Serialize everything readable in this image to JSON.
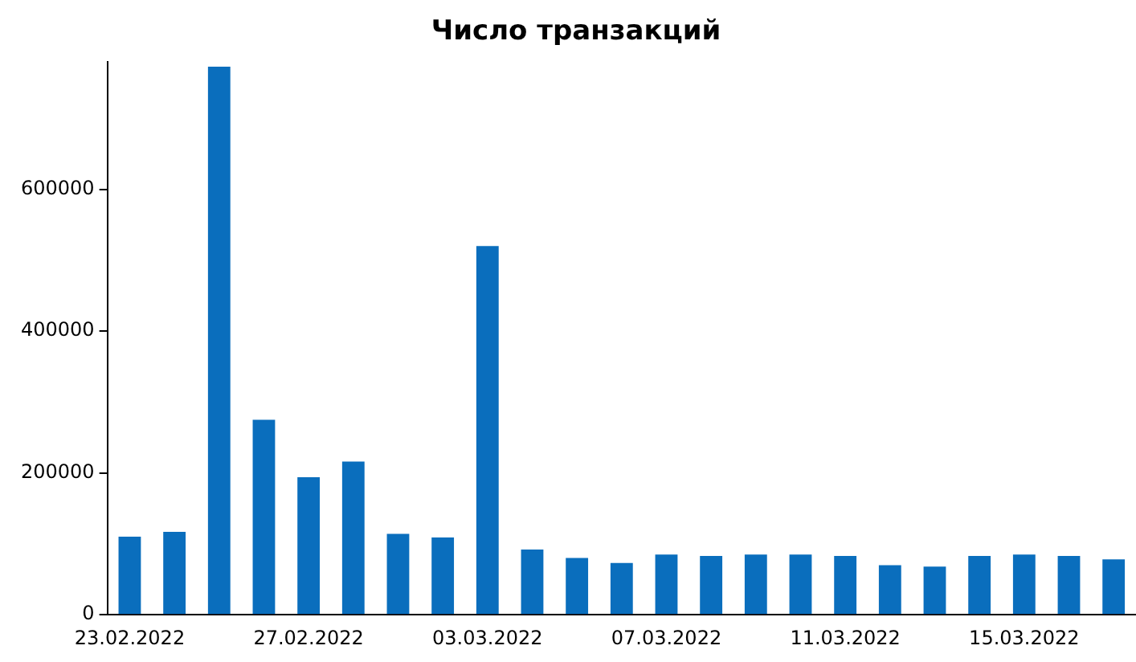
{
  "chart_data": {
    "type": "bar",
    "title": "Число транзакций",
    "categories": [
      "23.02.2022",
      null,
      null,
      null,
      "27.02.2022",
      null,
      null,
      null,
      "03.03.2022",
      null,
      null,
      null,
      "07.03.2022",
      null,
      null,
      null,
      "11.03.2022",
      null,
      null,
      null,
      "15.03.2022",
      null,
      null
    ],
    "values": [
      110000,
      117000,
      773000,
      275000,
      194000,
      216000,
      114000,
      109000,
      520000,
      92000,
      80000,
      73000,
      85000,
      83000,
      85000,
      85000,
      83000,
      70000,
      68000,
      83000,
      85000,
      83000,
      78000
    ],
    "color": "#0a6ebd",
    "ylim": [
      0,
      780000
    ],
    "yticks": [
      0,
      200000,
      400000,
      600000
    ],
    "grid": false
  }
}
